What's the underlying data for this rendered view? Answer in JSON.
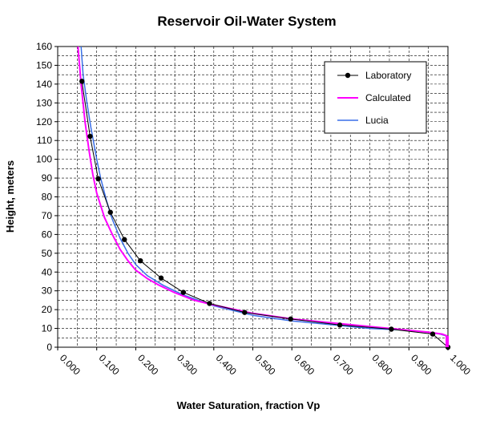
{
  "chart_data": {
    "type": "line",
    "title": "Reservoir Oil-Water System",
    "xlabel": "Water Saturation, fraction Vp",
    "ylabel": "Height, meters",
    "xlim": [
      0,
      1
    ],
    "ylim": [
      0,
      160
    ],
    "x_ticks": [
      "0.000",
      "0.100",
      "0.200",
      "0.300",
      "0.400",
      "0.500",
      "0.600",
      "0.700",
      "0.800",
      "0.900",
      "1.000"
    ],
    "y_ticks": [
      "0",
      "10",
      "20",
      "30",
      "40",
      "50",
      "60",
      "70",
      "80",
      "90",
      "100",
      "110",
      "120",
      "130",
      "140",
      "150",
      "160"
    ],
    "grid": true,
    "legend_position": "top-right",
    "series": [
      {
        "name": "Laboratory",
        "color": "#000000",
        "marker": "circle",
        "x": [
          0.062,
          0.083,
          0.104,
          0.135,
          0.171,
          0.212,
          0.265,
          0.322,
          0.389,
          0.479,
          0.597,
          0.723,
          0.855,
          0.961,
          1.0
        ],
        "y": [
          141.5,
          112.2,
          89.6,
          71.8,
          57.3,
          46.0,
          36.8,
          29.2,
          23.3,
          18.5,
          15.0,
          11.8,
          9.6,
          7.0,
          0.0
        ]
      },
      {
        "name": "Calculated",
        "color": "#ff00ff",
        "marker": "none",
        "x": [
          0.052,
          0.06,
          0.07,
          0.08,
          0.09,
          0.1,
          0.12,
          0.14,
          0.16,
          0.18,
          0.2,
          0.23,
          0.26,
          0.3,
          0.35,
          0.4,
          0.5,
          0.6,
          0.7,
          0.8,
          0.9,
          0.95,
          0.985,
          0.998
        ],
        "y": [
          160,
          140,
          120,
          105,
          92,
          82,
          69,
          60,
          52,
          46,
          41,
          36.5,
          33,
          29,
          25,
          22.5,
          18,
          15,
          13,
          11,
          9,
          8,
          7,
          6
        ]
      },
      {
        "name": "Lucia",
        "color": "#3a6fe8",
        "marker": "none",
        "x": [
          0.06,
          0.065,
          0.075,
          0.085,
          0.1,
          0.11,
          0.125,
          0.14,
          0.16,
          0.18,
          0.2,
          0.23,
          0.27,
          0.32,
          0.4,
          0.5,
          0.6,
          0.7,
          0.8,
          0.9,
          0.95,
          0.98,
          0.995
        ],
        "y": [
          160,
          145,
          130,
          117,
          100,
          90,
          78,
          68,
          58,
          50,
          44,
          38,
          33,
          28,
          22,
          17,
          14,
          12,
          10,
          9,
          8,
          7,
          6
        ]
      }
    ]
  }
}
